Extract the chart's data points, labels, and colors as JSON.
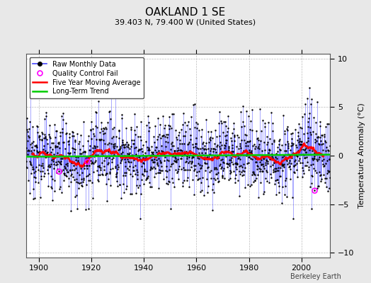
{
  "title": "OAKLAND 1 SE",
  "subtitle": "39.403 N, 79.400 W (United States)",
  "ylabel": "Temperature Anomaly (°C)",
  "attribution": "Berkeley Earth",
  "year_start": 1895,
  "year_end": 2011,
  "ylim": [
    -10.5,
    10.5
  ],
  "yticks": [
    -10,
    -5,
    0,
    5,
    10
  ],
  "xticks": [
    1900,
    1920,
    1940,
    1960,
    1980,
    2000
  ],
  "raw_color": "#4444ff",
  "moving_avg_color": "#ff0000",
  "trend_color": "#00cc00",
  "qc_fail_color": "#ff00ff",
  "bg_color": "#e8e8e8",
  "plot_bg_color": "#ffffff",
  "seed": 12345
}
